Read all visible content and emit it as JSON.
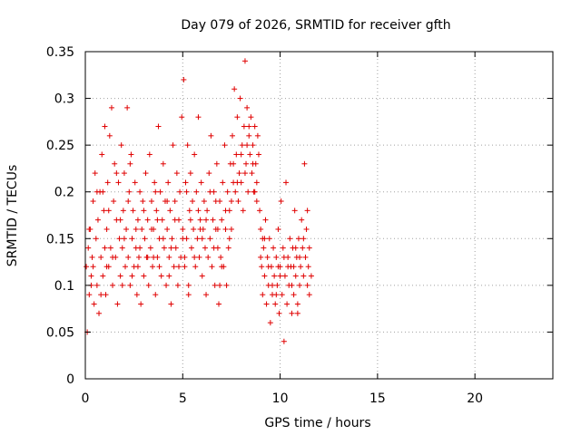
{
  "chart_data": {
    "type": "scatter",
    "title": "Day 079 of 2026, SRMTID for receiver gfth",
    "xlabel": "GPS time / hours",
    "ylabel": "SRMTID / TECUs",
    "xlim": [
      0,
      24
    ],
    "ylim": [
      0,
      0.35
    ],
    "xticks": [
      "0",
      "5",
      "10",
      "15",
      "20"
    ],
    "xtick_values": [
      0,
      5,
      10,
      15,
      20
    ],
    "yticks": [
      "0",
      "0.05",
      "0.1",
      "0.15",
      "0.2",
      "0.25",
      "0.3",
      "0.35"
    ],
    "ytick_values": [
      0,
      0.05,
      0.1,
      0.15,
      0.2,
      0.25,
      0.3,
      0.35
    ],
    "grid": true,
    "legend": "none",
    "marker": "plus",
    "color": "#e00000",
    "x_extent": [
      0,
      11.6
    ],
    "series": [
      {
        "name": "",
        "points": [
          [
            0.05,
            0.12
          ],
          [
            0.1,
            0.05
          ],
          [
            0.15,
            0.14
          ],
          [
            0.2,
            0.09
          ],
          [
            0.25,
            0.16
          ],
          [
            0.3,
            0.11
          ],
          [
            0.35,
            0.13
          ],
          [
            0.4,
            0.19
          ],
          [
            0.45,
            0.08
          ],
          [
            0.5,
            0.22
          ],
          [
            0.55,
            0.15
          ],
          [
            0.6,
            0.1
          ],
          [
            0.65,
            0.17
          ],
          [
            0.7,
            0.07
          ],
          [
            0.75,
            0.2
          ],
          [
            0.8,
            0.13
          ],
          [
            0.85,
            0.24
          ],
          [
            0.9,
            0.11
          ],
          [
            0.95,
            0.18
          ],
          [
            1.0,
            0.27
          ],
          [
            1.05,
            0.09
          ],
          [
            1.1,
            0.16
          ],
          [
            1.15,
            0.21
          ],
          [
            1.2,
            0.12
          ],
          [
            1.25,
            0.26
          ],
          [
            1.3,
            0.14
          ],
          [
            1.35,
            0.29
          ],
          [
            1.4,
            0.1
          ],
          [
            1.45,
            0.19
          ],
          [
            1.5,
            0.23
          ],
          [
            1.55,
            0.13
          ],
          [
            1.6,
            0.17
          ],
          [
            1.65,
            0.08
          ],
          [
            1.7,
            0.21
          ],
          [
            1.75,
            0.15
          ],
          [
            1.8,
            0.11
          ],
          [
            1.85,
            0.25
          ],
          [
            1.9,
            0.14
          ],
          [
            1.95,
            0.18
          ],
          [
            2.0,
            0.22
          ],
          [
            2.05,
            0.12
          ],
          [
            2.1,
            0.16
          ],
          [
            2.15,
            0.29
          ],
          [
            2.2,
            0.13
          ],
          [
            2.25,
            0.2
          ],
          [
            2.3,
            0.1
          ],
          [
            2.35,
            0.24
          ],
          [
            2.4,
            0.15
          ],
          [
            2.45,
            0.18
          ],
          [
            2.5,
            0.12
          ],
          [
            2.55,
            0.21
          ],
          [
            2.6,
            0.14
          ],
          [
            2.65,
            0.09
          ],
          [
            2.7,
            0.17
          ],
          [
            2.75,
            0.13
          ],
          [
            2.8,
            0.2
          ],
          [
            2.85,
            0.08
          ],
          [
            2.9,
            0.16
          ],
          [
            2.95,
            0.19
          ],
          [
            3.0,
            0.11
          ],
          [
            3.05,
            0.15
          ],
          [
            3.1,
            0.22
          ],
          [
            3.15,
            0.13
          ],
          [
            3.2,
            0.17
          ],
          [
            3.25,
            0.1
          ],
          [
            3.3,
            0.24
          ],
          [
            3.35,
            0.14
          ],
          [
            3.4,
            0.19
          ],
          [
            3.45,
            0.12
          ],
          [
            3.5,
            0.16
          ],
          [
            3.55,
            0.21
          ],
          [
            3.6,
            0.09
          ],
          [
            3.65,
            0.18
          ],
          [
            3.7,
            0.13
          ],
          [
            3.75,
            0.27
          ],
          [
            3.8,
            0.15
          ],
          [
            3.85,
            0.2
          ],
          [
            3.9,
            0.11
          ],
          [
            3.95,
            0.17
          ],
          [
            4.0,
            0.23
          ],
          [
            4.05,
            0.14
          ],
          [
            4.1,
            0.19
          ],
          [
            4.15,
            0.1
          ],
          [
            4.2,
            0.16
          ],
          [
            4.25,
            0.21
          ],
          [
            4.3,
            0.13
          ],
          [
            4.35,
            0.18
          ],
          [
            4.4,
            0.08
          ],
          [
            4.45,
            0.15
          ],
          [
            4.5,
            0.25
          ],
          [
            4.55,
            0.12
          ],
          [
            4.6,
            0.19
          ],
          [
            4.65,
            0.14
          ],
          [
            4.7,
            0.22
          ],
          [
            4.75,
            0.1
          ],
          [
            4.8,
            0.17
          ],
          [
            4.85,
            0.2
          ],
          [
            4.9,
            0.13
          ],
          [
            4.95,
            0.28
          ],
          [
            5.0,
            0.16
          ],
          [
            5.05,
            0.32
          ],
          [
            5.1,
            0.12
          ],
          [
            5.15,
            0.21
          ],
          [
            5.2,
            0.15
          ],
          [
            5.25,
            0.25
          ],
          [
            5.3,
            0.1
          ],
          [
            5.35,
            0.18
          ],
          [
            5.4,
            0.22
          ],
          [
            5.45,
            0.14
          ],
          [
            5.5,
            0.19
          ],
          [
            5.55,
            0.16
          ],
          [
            5.6,
            0.24
          ],
          [
            5.65,
            0.12
          ],
          [
            5.7,
            0.2
          ],
          [
            5.75,
            0.15
          ],
          [
            5.8,
            0.28
          ],
          [
            5.85,
            0.13
          ],
          [
            5.9,
            0.17
          ],
          [
            5.95,
            0.21
          ],
          [
            6.0,
            0.11
          ],
          [
            6.05,
            0.16
          ],
          [
            6.1,
            0.19
          ],
          [
            6.15,
            0.14
          ],
          [
            6.2,
            0.09
          ],
          [
            6.25,
            0.18
          ],
          [
            6.3,
            0.13
          ],
          [
            6.35,
            0.22
          ],
          [
            6.4,
            0.15
          ],
          [
            6.45,
            0.26
          ],
          [
            6.5,
            0.12
          ],
          [
            6.55,
            0.17
          ],
          [
            6.6,
            0.2
          ],
          [
            6.65,
            0.1
          ],
          [
            6.7,
            0.16
          ],
          [
            6.75,
            0.23
          ],
          [
            6.8,
            0.14
          ],
          [
            6.85,
            0.08
          ],
          [
            6.9,
            0.19
          ],
          [
            6.95,
            0.13
          ],
          [
            7.0,
            0.17
          ],
          [
            7.05,
            0.21
          ],
          [
            7.1,
            0.12
          ],
          [
            7.15,
            0.25
          ],
          [
            7.2,
            0.16
          ],
          [
            7.25,
            0.1
          ],
          [
            7.3,
            0.2
          ],
          [
            7.35,
            0.14
          ],
          [
            7.4,
            0.18
          ],
          [
            7.45,
            0.23
          ],
          [
            7.5,
            0.19
          ],
          [
            7.55,
            0.26
          ],
          [
            7.6,
            0.21
          ],
          [
            7.65,
            0.31
          ],
          [
            7.7,
            0.2
          ],
          [
            7.75,
            0.24
          ],
          [
            7.8,
            0.28
          ],
          [
            7.85,
            0.19
          ],
          [
            7.9,
            0.22
          ],
          [
            7.95,
            0.3
          ],
          [
            8.0,
            0.21
          ],
          [
            8.05,
            0.25
          ],
          [
            8.1,
            0.18
          ],
          [
            8.15,
            0.27
          ],
          [
            8.2,
            0.34
          ],
          [
            8.25,
            0.23
          ],
          [
            8.3,
            0.29
          ],
          [
            8.35,
            0.2
          ],
          [
            8.4,
            0.26
          ],
          [
            8.45,
            0.24
          ],
          [
            8.5,
            0.28
          ],
          [
            8.55,
            0.22
          ],
          [
            8.6,
            0.25
          ],
          [
            8.65,
            0.2
          ],
          [
            8.7,
            0.27
          ],
          [
            8.75,
            0.23
          ],
          [
            8.8,
            0.19
          ],
          [
            8.85,
            0.26
          ],
          [
            8.9,
            0.24
          ],
          [
            8.95,
            0.18
          ],
          [
            9.0,
            0.16
          ],
          [
            9.05,
            0.12
          ],
          [
            9.1,
            0.09
          ],
          [
            9.15,
            0.14
          ],
          [
            9.2,
            0.11
          ],
          [
            9.25,
            0.17
          ],
          [
            9.3,
            0.08
          ],
          [
            9.35,
            0.13
          ],
          [
            9.4,
            0.1
          ],
          [
            9.45,
            0.15
          ],
          [
            9.5,
            0.06
          ],
          [
            9.55,
            0.12
          ],
          [
            9.6,
            0.09
          ],
          [
            9.65,
            0.14
          ],
          [
            9.7,
            0.11
          ],
          [
            9.75,
            0.08
          ],
          [
            9.8,
            0.13
          ],
          [
            9.85,
            0.1
          ],
          [
            9.9,
            0.16
          ],
          [
            9.95,
            0.07
          ],
          [
            10.0,
            0.12
          ],
          [
            10.05,
            0.19
          ],
          [
            10.1,
            0.09
          ],
          [
            10.15,
            0.14
          ],
          [
            10.2,
            0.04
          ],
          [
            10.25,
            0.11
          ],
          [
            10.3,
            0.21
          ],
          [
            10.35,
            0.08
          ],
          [
            10.4,
            0.13
          ],
          [
            10.45,
            0.1
          ],
          [
            10.5,
            0.15
          ],
          [
            10.55,
            0.12
          ],
          [
            10.6,
            0.07
          ],
          [
            10.65,
            0.14
          ],
          [
            10.7,
            0.09
          ],
          [
            10.75,
            0.18
          ],
          [
            10.8,
            0.11
          ],
          [
            10.85,
            0.13
          ],
          [
            10.9,
            0.08
          ],
          [
            10.95,
            0.15
          ],
          [
            11.0,
            0.1
          ],
          [
            11.05,
            0.12
          ],
          [
            11.1,
            0.17
          ],
          [
            11.15,
            0.14
          ],
          [
            11.2,
            0.11
          ],
          [
            11.25,
            0.23
          ],
          [
            11.3,
            0.13
          ],
          [
            11.35,
            0.16
          ],
          [
            11.4,
            0.1
          ],
          [
            11.45,
            0.12
          ],
          [
            11.5,
            0.14
          ],
          [
            0.2,
            0.16
          ],
          [
            0.4,
            0.12
          ],
          [
            0.6,
            0.2
          ],
          [
            0.8,
            0.09
          ],
          [
            1.0,
            0.14
          ],
          [
            1.2,
            0.18
          ],
          [
            1.4,
            0.13
          ],
          [
            1.6,
            0.22
          ],
          [
            1.8,
            0.17
          ],
          [
            2.0,
            0.15
          ],
          [
            2.2,
            0.19
          ],
          [
            2.4,
            0.11
          ],
          [
            2.6,
            0.16
          ],
          [
            2.8,
            0.14
          ],
          [
            3.0,
            0.18
          ],
          [
            3.2,
            0.13
          ],
          [
            3.4,
            0.16
          ],
          [
            3.6,
            0.2
          ],
          [
            3.8,
            0.12
          ],
          [
            4.0,
            0.15
          ],
          [
            4.2,
            0.19
          ],
          [
            4.4,
            0.14
          ],
          [
            4.6,
            0.17
          ],
          [
            4.8,
            0.12
          ],
          [
            5.0,
            0.15
          ],
          [
            5.2,
            0.2
          ],
          [
            5.4,
            0.17
          ],
          [
            5.6,
            0.13
          ],
          [
            5.8,
            0.18
          ],
          [
            6.0,
            0.15
          ],
          [
            6.2,
            0.17
          ],
          [
            6.4,
            0.2
          ],
          [
            6.6,
            0.14
          ],
          [
            6.8,
            0.16
          ],
          [
            7.0,
            0.12
          ],
          [
            7.2,
            0.18
          ],
          [
            7.4,
            0.15
          ],
          [
            7.6,
            0.23
          ],
          [
            7.8,
            0.21
          ],
          [
            8.0,
            0.24
          ],
          [
            8.2,
            0.22
          ],
          [
            8.4,
            0.27
          ],
          [
            8.6,
            0.23
          ],
          [
            8.8,
            0.21
          ],
          [
            9.0,
            0.13
          ],
          [
            9.2,
            0.15
          ],
          [
            9.4,
            0.12
          ],
          [
            9.6,
            0.1
          ],
          [
            9.8,
            0.09
          ],
          [
            10.0,
            0.11
          ],
          [
            10.2,
            0.13
          ],
          [
            10.4,
            0.12
          ],
          [
            10.6,
            0.1
          ],
          [
            10.8,
            0.14
          ],
          [
            11.0,
            0.13
          ],
          [
            11.2,
            0.15
          ],
          [
            11.4,
            0.18
          ],
          [
            11.6,
            0.11
          ],
          [
            0.3,
            0.1
          ],
          [
            1.1,
            0.12
          ],
          [
            1.9,
            0.1
          ],
          [
            2.7,
            0.12
          ],
          [
            3.5,
            0.13
          ],
          [
            4.3,
            0.11
          ],
          [
            5.1,
            0.13
          ],
          [
            5.9,
            0.16
          ],
          [
            6.7,
            0.19
          ],
          [
            7.5,
            0.16
          ],
          [
            8.3,
            0.25
          ],
          [
            9.1,
            0.15
          ],
          [
            9.9,
            0.12
          ],
          [
            10.7,
            0.12
          ],
          [
            11.5,
            0.09
          ],
          [
            0.9,
            0.2
          ],
          [
            2.3,
            0.23
          ],
          [
            3.7,
            0.17
          ],
          [
            5.3,
            0.09
          ],
          [
            6.9,
            0.1
          ],
          [
            8.7,
            0.2
          ],
          [
            10.9,
            0.07
          ]
        ]
      }
    ]
  }
}
